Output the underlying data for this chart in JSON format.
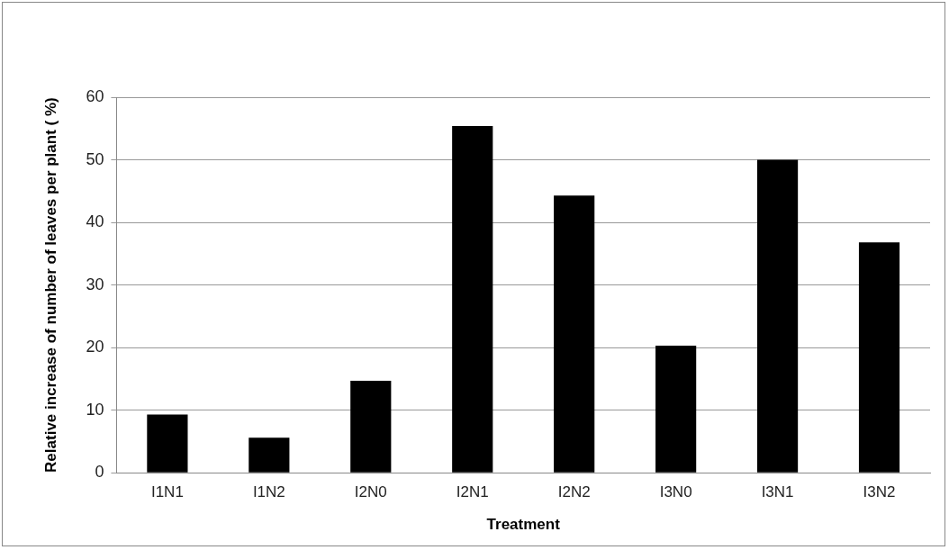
{
  "chart_data": {
    "type": "bar",
    "xlabel": "Treatment",
    "ylabel": "Relative increase of number of leaves per plant ( %)",
    "categories": [
      "I1N1",
      "I1N2",
      "I2N0",
      "I2N1",
      "I2N2",
      "I3N0",
      "I3N1",
      "I3N2"
    ],
    "values": [
      9.3,
      5.6,
      14.7,
      55.4,
      44.3,
      20.3,
      50.0,
      36.8
    ],
    "color": "#000000",
    "ylim": [
      0,
      60
    ],
    "yticks": [
      0,
      10,
      20,
      30,
      40,
      50,
      60
    ],
    "grid": "y",
    "legend": false
  }
}
